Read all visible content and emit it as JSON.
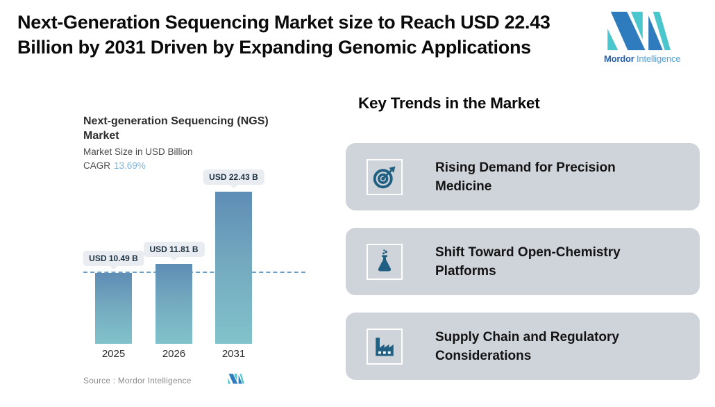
{
  "header": {
    "title": "Next-Generation Sequencing Market size to Reach USD 22.43 Billion by 2031 Driven by Expanding Genomic Applications",
    "brand": {
      "name_bold": "Mordor",
      "name_light": "Intelligence"
    }
  },
  "chart": {
    "title": "Next-generation Sequencing (NGS) Market",
    "subtitle": "Market Size in USD Billion",
    "cagr_label": "CAGR",
    "cagr_value": "13.69%",
    "source": "Source :  Mordor Intelligence"
  },
  "chart_data": {
    "type": "bar",
    "title": "Next-generation Sequencing (NGS) Market",
    "subtitle": "Market Size in USD Billion",
    "unit": "USD Billion",
    "cagr_percent": 13.69,
    "categories": [
      "2025",
      "2026",
      "2031"
    ],
    "values": [
      10.49,
      11.81,
      22.43
    ],
    "value_labels": [
      "USD 10.49 B",
      "USD 11.81 B",
      "USD 22.43 B"
    ],
    "ylim": [
      0,
      22.43
    ],
    "grid": false,
    "legend": false,
    "reference_line": {
      "at_value": 10.49,
      "style": "dashed",
      "color": "#6b9ec9"
    },
    "bar_gradient": {
      "top": "#5e8db5",
      "bottom": "#81c3ca"
    },
    "source": "Source :  Mordor Intelligence"
  },
  "trends": {
    "heading": "Key Trends in the Market",
    "items": [
      {
        "icon": "target-arrow-icon",
        "label": "Rising Demand for Precision Medicine"
      },
      {
        "icon": "chemistry-flask-icon",
        "label": "Shift Toward Open-Chemistry Platforms"
      },
      {
        "icon": "factory-icon",
        "label": "Supply Chain and Regulatory Considerations"
      }
    ]
  },
  "colors": {
    "logo_blue": "#2e7bbd",
    "logo_teal": "#4cc6cd",
    "icon_blue": "#1f5f82",
    "card_bg": "#cfd4da",
    "cagr_accent": "#7fb3d8"
  }
}
